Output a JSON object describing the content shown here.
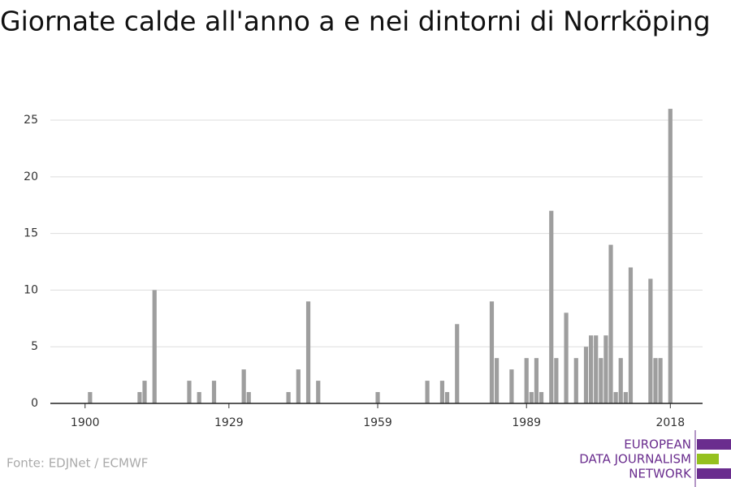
{
  "chart_data": {
    "type": "bar",
    "title": "Giornate calde all'anno a e nei dintorni di Norrköping",
    "source": "Fonte: EDJNet / ECMWF",
    "logo": [
      "EUROPEAN",
      "DATA JOURNALISM",
      "NETWORK"
    ],
    "x": [
      1901,
      1911,
      1912,
      1914,
      1921,
      1923,
      1926,
      1932,
      1933,
      1941,
      1943,
      1945,
      1947,
      1959,
      1969,
      1972,
      1973,
      1975,
      1982,
      1983,
      1986,
      1989,
      1990,
      1991,
      1992,
      1994,
      1995,
      1997,
      1999,
      2001,
      2002,
      2003,
      2004,
      2005,
      2006,
      2007,
      2008,
      2009,
      2010,
      2014,
      2015,
      2016,
      2018
    ],
    "values": [
      1,
      1,
      2,
      10,
      2,
      1,
      2,
      3,
      1,
      1,
      3,
      9,
      2,
      1,
      2,
      2,
      1,
      7,
      9,
      4,
      3,
      4,
      1,
      4,
      1,
      17,
      4,
      8,
      4,
      5,
      6,
      6,
      4,
      6,
      14,
      1,
      4,
      1,
      12,
      11,
      4,
      4,
      26
    ],
    "color": "#9e9e9e",
    "xlim": [
      1893,
      2024.5
    ],
    "xticks": [
      1900,
      1929,
      1959,
      1989,
      2018
    ],
    "ylim": [
      0,
      26.5
    ],
    "yticks": [
      0,
      5,
      10,
      15,
      20,
      25
    ],
    "grid": true
  }
}
